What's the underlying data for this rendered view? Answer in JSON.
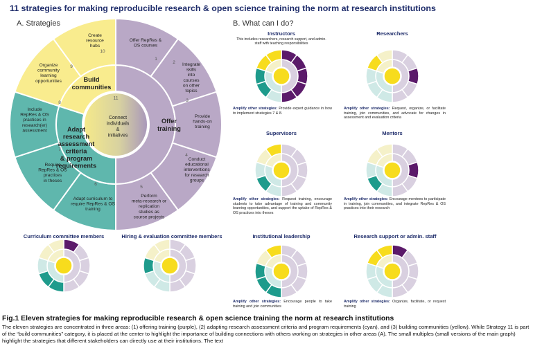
{
  "title": "11 strategies for making reproducible research & open science training the norm at research institutions",
  "section_a": "A. Strategies",
  "section_b": "B. What can I do?",
  "colors": {
    "purple": "#b9a8c6",
    "purple_dark": "#5b1a6a",
    "cyan": "#5fb7ad",
    "cyan_dark": "#1e9b8c",
    "yellow": "#f9ec8e",
    "yellow_bright": "#f7dc1d",
    "faded": "#eeeef0"
  },
  "diagram": {
    "categories": [
      {
        "label": "Offer training",
        "color": "purple"
      },
      {
        "label": "Adapt research assessment criteria & program requirements",
        "color": "cyan"
      },
      {
        "label": "Build communities",
        "color": "yellow"
      }
    ],
    "center": {
      "number": "11",
      "label": "Connect individuals & initiatives"
    },
    "strategies": [
      {
        "number": "1",
        "label": "Offer RepRes & OS courses",
        "category": "purple"
      },
      {
        "number": "2",
        "label": "Integrate skills into courses on other topics",
        "category": "purple"
      },
      {
        "number": "3",
        "label": "Provide hands-on training",
        "category": "purple"
      },
      {
        "number": "4",
        "label": "Conduct educational interventions for research groups",
        "category": "purple"
      },
      {
        "number": "5",
        "label": "Perform meta-research or replication studies as course projects",
        "category": "purple"
      },
      {
        "number": "6",
        "label": "Adapt curriculum to require RepRes & OS training",
        "category": "cyan"
      },
      {
        "number": "7",
        "label": "Require RepRes & OS practices in theses",
        "category": "cyan"
      },
      {
        "number": "8",
        "label": "Include RepRes & OS practices in research(er) assessment",
        "category": "cyan"
      },
      {
        "number": "9",
        "label": "Organize community learning opportunities",
        "category": "yellow"
      },
      {
        "number": "10",
        "label": "Create resource hubs",
        "category": "yellow"
      }
    ]
  },
  "stakeholders": [
    {
      "title": "Instructors",
      "desc": "This includes researchers, research support, and admin. staff with teaching responsibilities",
      "amplify_label": "Amplify other strategies:",
      "amplify": "Provide expert guidance in how to implement strategies 7 & 8.",
      "highlight": [
        1,
        2,
        3,
        4,
        5,
        7,
        8,
        9,
        10,
        11
      ]
    },
    {
      "title": "Researchers",
      "desc": "",
      "amplify_label": "Amplify other strategies:",
      "amplify": "Request, organize, or facilitate training, join communities, and advocate for changes in assessment and evaluation criteria",
      "highlight": [
        3,
        9,
        11
      ]
    },
    {
      "title": "Supervisors",
      "desc": "",
      "amplify_label": "Amplify other strategies:",
      "amplify": "Request training, encourage students to take advantage of training and community learning opportunities, and support the uptake of RepRes & OS practices into theses",
      "highlight": [
        7,
        10,
        11
      ]
    },
    {
      "title": "Mentors",
      "desc": "",
      "amplify_label": "Amplify other strategies:",
      "amplify": "Encourage mentees to participate in training, join communities, and integrate RepRes & OS practices into their research",
      "highlight": [
        3,
        7,
        11
      ]
    },
    {
      "title": "Curriculum committee members",
      "desc": "",
      "amplify_label": "",
      "amplify": "",
      "highlight": [
        1,
        6,
        7,
        11
      ]
    },
    {
      "title": "Hiring & evaluation committee members",
      "desc": "",
      "amplify_label": "",
      "amplify": "",
      "highlight": [
        8,
        11
      ]
    },
    {
      "title": "Institutional leadership",
      "desc": "",
      "amplify_label": "Amplify other strategies:",
      "amplify": "Encourage people to take training and join communities",
      "highlight": [
        6,
        7,
        8,
        10,
        11
      ]
    },
    {
      "title": "Research support or admin. staff",
      "desc": "",
      "amplify_label": "Amplify other strategies:",
      "amplify": "Organize, facilitate, or request training",
      "highlight": [
        1,
        9,
        10,
        11
      ]
    }
  ],
  "caption": {
    "title": "Fig.1 Eleven strategies for making reproducible research & open science training the norm at research institutions",
    "body": "The eleven strategies are concentrated in three areas: (1) offering training (purple), (2) adapting research assessment criteria and program requirements (cyan), and (3) building communities (yellow). While Strategy 11 is part of the “build communities” category, it is placed at the center to highlight the importance of building connections with others working on strategies in other areas (A). The small multiples (small versions of the main graph) highlight the strategies that different stakeholders can directly use at their institutions. The text"
  }
}
